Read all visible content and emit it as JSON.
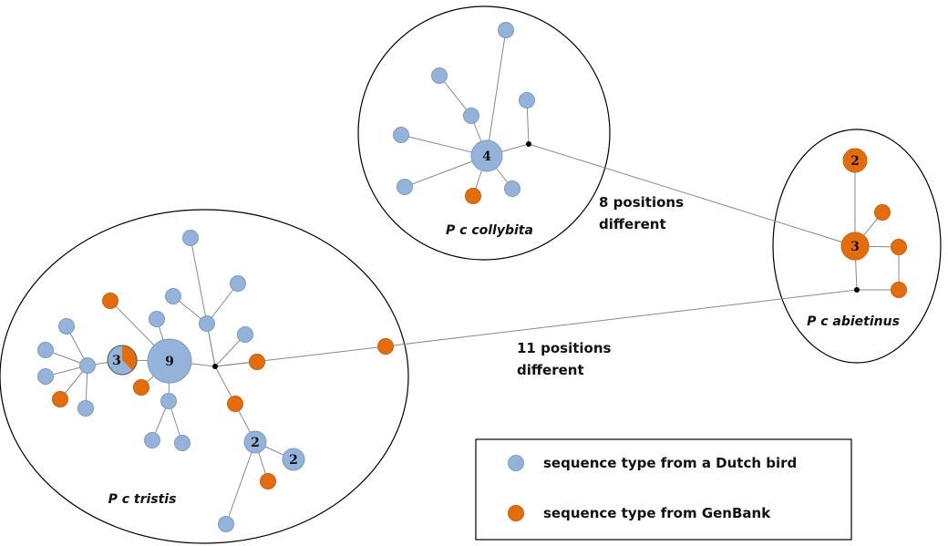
{
  "colors": {
    "dutch": "#93b3da",
    "dutch_stroke": "#7d9cc4",
    "genbank": "#e46c0a",
    "genbank_stroke": "#c9610c",
    "hub": "#000000"
  },
  "groups": [
    {
      "id": "collybita",
      "label": "P c collybita"
    },
    {
      "id": "abietinus",
      "label": "P c abietinus"
    },
    {
      "id": "tristis",
      "label": "P c tristis"
    }
  ],
  "annotations": [
    {
      "id": "eight",
      "lines": [
        "8 positions",
        "different"
      ]
    },
    {
      "id": "eleven",
      "lines": [
        "11 positions",
        "different"
      ]
    }
  ],
  "node_counts": {
    "collybita_center": "4",
    "abietinus_top": "2",
    "abietinus_center": "3",
    "tristis_main": "9",
    "tristis_mixed": "3",
    "tristis_mid": "2",
    "tristis_right": "2"
  },
  "legend": {
    "items": [
      {
        "type": "dutch",
        "label": "sequence type from a Dutch bird"
      },
      {
        "type": "genbank",
        "label": "sequence type from GenBank"
      }
    ]
  }
}
